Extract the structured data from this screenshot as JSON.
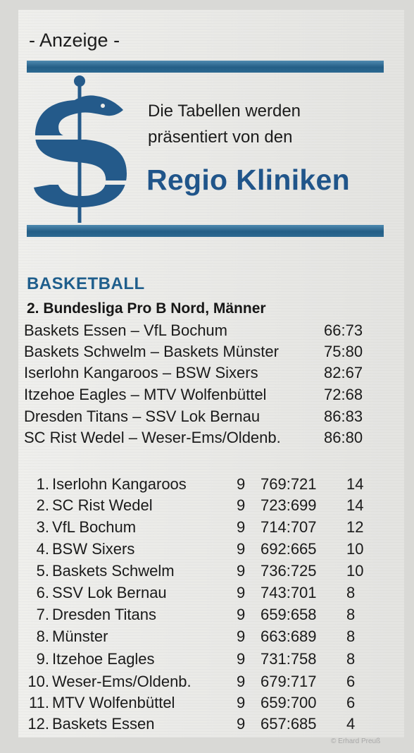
{
  "ad": {
    "label": "- Anzeige -",
    "headline_line1": "Die Tabellen werden",
    "headline_line2": "präsentiert von den",
    "brand": "Regio Kliniken",
    "accent_color": "#20558a",
    "logo_icon": "regio-kliniken-logo-icon"
  },
  "section": {
    "title": "BASKETBALL",
    "league": "2. Bundesliga Pro B Nord, Männer"
  },
  "results": [
    {
      "match": "Baskets Essen – VfL Bochum",
      "score": "66:73"
    },
    {
      "match": "Baskets Schwelm – Baskets Münster",
      "score": "75:80"
    },
    {
      "match": "Iserlohn Kangaroos – BSW Sixers",
      "score": "82:67"
    },
    {
      "match": "Itzehoe Eagles – MTV Wolfenbüttel",
      "score": "72:68"
    },
    {
      "match": "Dresden Titans – SSV Lok Bernau",
      "score": "86:83"
    },
    {
      "match": "SC Rist Wedel – Weser-Ems/Oldenb.",
      "score": "86:80"
    }
  ],
  "table": [
    {
      "rank": "1.",
      "team": "Iserlohn Kangaroos",
      "games": "9",
      "points_ratio": "769:721",
      "table_points": "14"
    },
    {
      "rank": "2.",
      "team": "SC Rist Wedel",
      "games": "9",
      "points_ratio": "723:699",
      "table_points": "14"
    },
    {
      "rank": "3.",
      "team": "VfL Bochum",
      "games": "9",
      "points_ratio": "714:707",
      "table_points": "12"
    },
    {
      "rank": "4.",
      "team": "BSW Sixers",
      "games": "9",
      "points_ratio": "692:665",
      "table_points": "10"
    },
    {
      "rank": "5.",
      "team": "Baskets Schwelm",
      "games": "9",
      "points_ratio": "736:725",
      "table_points": "10"
    },
    {
      "rank": "6.",
      "team": "SSV Lok Bernau",
      "games": "9",
      "points_ratio": "743:701",
      "table_points": "8"
    },
    {
      "rank": "7.",
      "team": "Dresden Titans",
      "games": "9",
      "points_ratio": "659:658",
      "table_points": "8"
    },
    {
      "rank": "8.",
      "team": "Münster",
      "games": "9",
      "points_ratio": "663:689",
      "table_points": "8"
    },
    {
      "rank": "9.",
      "team": "Itzehoe Eagles",
      "games": "9",
      "points_ratio": "731:758",
      "table_points": "8"
    },
    {
      "rank": "10.",
      "team": "Weser-Ems/Oldenb.",
      "games": "9",
      "points_ratio": "679:717",
      "table_points": "6"
    },
    {
      "rank": "11.",
      "team": "MTV Wolfenbüttel",
      "games": "9",
      "points_ratio": "659:700",
      "table_points": "6"
    },
    {
      "rank": "12.",
      "team": "Baskets Essen",
      "games": "9",
      "points_ratio": "657:685",
      "table_points": "4"
    }
  ],
  "credit": "© Erhard Preuß"
}
